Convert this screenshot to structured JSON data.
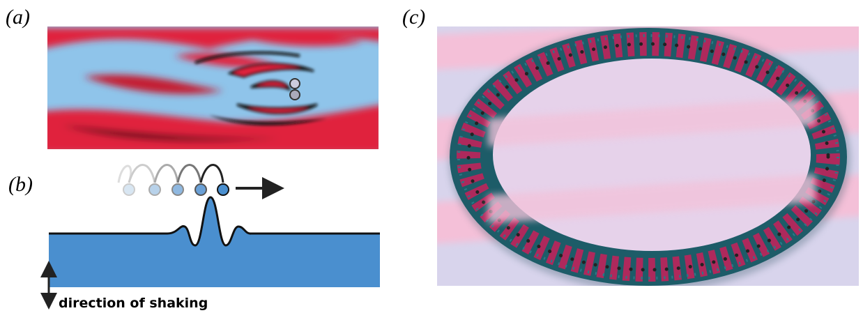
{
  "panels": [
    {
      "label": "(a)"
    },
    {
      "label": "(b)",
      "annotation": "direction of shaking"
    },
    {
      "label": "(c)"
    }
  ]
}
